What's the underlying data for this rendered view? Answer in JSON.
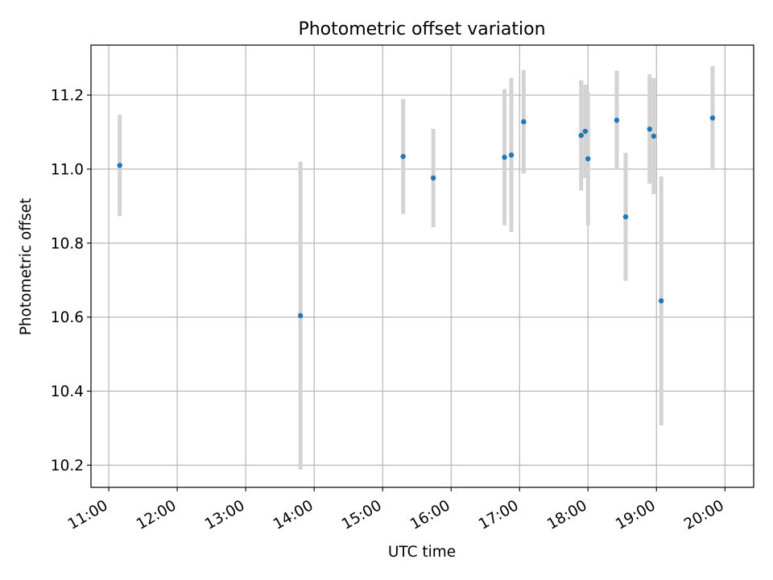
{
  "chart_data": {
    "type": "scatter",
    "title": "Photometric offset variation",
    "xlabel": "UTC time",
    "ylabel": "Photometric offset",
    "x_unit": "hour-of-day (UTC)",
    "xlim": [
      10.74,
      20.42
    ],
    "ylim": [
      10.14,
      11.335
    ],
    "x_ticks": [
      11,
      12,
      13,
      14,
      15,
      16,
      17,
      18,
      19,
      20
    ],
    "x_tick_labels": [
      "11:00",
      "12:00",
      "13:00",
      "14:00",
      "15:00",
      "16:00",
      "17:00",
      "18:00",
      "19:00",
      "20:00"
    ],
    "y_ticks": [
      10.2,
      10.4,
      10.6,
      10.8,
      11.0,
      11.2
    ],
    "y_tick_labels": [
      "10.2",
      "10.4",
      "10.6",
      "10.8",
      "11.0",
      "11.2"
    ],
    "grid": true,
    "colors": {
      "point": "#1f77b4",
      "errorbar": "#d3d3d3",
      "grid": "#b0b0b0"
    },
    "points": [
      {
        "t": 11.16,
        "y": 11.01,
        "err": 0.137
      },
      {
        "t": 13.8,
        "y": 10.604,
        "err": 0.416
      },
      {
        "t": 15.3,
        "y": 11.034,
        "err": 0.155
      },
      {
        "t": 15.74,
        "y": 10.976,
        "err": 0.133
      },
      {
        "t": 16.78,
        "y": 11.032,
        "err": 0.184
      },
      {
        "t": 16.88,
        "y": 11.038,
        "err": 0.208
      },
      {
        "t": 17.06,
        "y": 11.128,
        "err": 0.14
      },
      {
        "t": 17.9,
        "y": 11.091,
        "err": 0.149
      },
      {
        "t": 17.96,
        "y": 11.102,
        "err": 0.126
      },
      {
        "t": 18.0,
        "y": 11.028,
        "err": 0.18
      },
      {
        "t": 18.42,
        "y": 11.132,
        "err": 0.134
      },
      {
        "t": 18.55,
        "y": 10.871,
        "err": 0.173
      },
      {
        "t": 18.9,
        "y": 11.108,
        "err": 0.148
      },
      {
        "t": 18.96,
        "y": 11.089,
        "err": 0.157
      },
      {
        "t": 19.07,
        "y": 10.644,
        "err": 0.336
      },
      {
        "t": 19.82,
        "y": 11.138,
        "err": 0.14
      }
    ]
  }
}
